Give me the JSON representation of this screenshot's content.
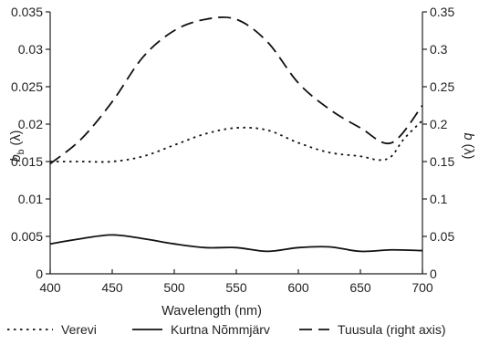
{
  "chart_data": {
    "type": "line",
    "title": "",
    "xlabel": "Wavelength (nm)",
    "ylabel_main": "b",
    "ylabel_sub": "b",
    "ylabel_suffix": " (λ)",
    "ylabel_right_main": "b",
    "ylabel_right_suffix": " (λ)",
    "xlim": [
      400,
      700
    ],
    "ylim_left": [
      0,
      0.035
    ],
    "ylim_right": [
      0,
      0.35
    ],
    "x_ticks": [
      "400",
      "450",
      "500",
      "550",
      "600",
      "650",
      "700"
    ],
    "y_ticks_left": [
      "0",
      "0.005",
      "0.01",
      "0.015",
      "0.02",
      "0.025",
      "0.03",
      "0.035"
    ],
    "y_ticks_right": [
      "0",
      "0.05",
      "0.1",
      "0.15",
      "0.2",
      "0.25",
      "0.3",
      "0.35"
    ],
    "grid": false,
    "legend_position": "bottom",
    "series": [
      {
        "name": "Verevi",
        "axis": "left",
        "style": "dotted",
        "color": "#111111",
        "x": [
          400,
          425,
          450,
          475,
          500,
          525,
          550,
          575,
          600,
          625,
          650,
          665,
          675,
          685,
          700
        ],
        "y": [
          0.015,
          0.015,
          0.015,
          0.0157,
          0.0172,
          0.0187,
          0.0195,
          0.0192,
          0.0175,
          0.0162,
          0.0157,
          0.0152,
          0.0157,
          0.018,
          0.0205
        ]
      },
      {
        "name": "Kurtna Nõmmjärv",
        "axis": "left",
        "style": "solid",
        "color": "#111111",
        "x": [
          400,
          425,
          450,
          475,
          500,
          525,
          550,
          575,
          600,
          625,
          650,
          675,
          700
        ],
        "y": [
          0.004,
          0.0047,
          0.0052,
          0.0047,
          0.004,
          0.0035,
          0.0035,
          0.003,
          0.0035,
          0.0036,
          0.003,
          0.0032,
          0.0031
        ]
      },
      {
        "name": "Tuusula (right axis)",
        "axis": "right",
        "style": "dashed",
        "color": "#111111",
        "x": [
          400,
          425,
          450,
          475,
          500,
          525,
          550,
          575,
          600,
          625,
          650,
          675,
          700
        ],
        "y": [
          0.147,
          0.18,
          0.23,
          0.29,
          0.325,
          0.34,
          0.34,
          0.31,
          0.255,
          0.22,
          0.195,
          0.175,
          0.225
        ]
      }
    ]
  }
}
